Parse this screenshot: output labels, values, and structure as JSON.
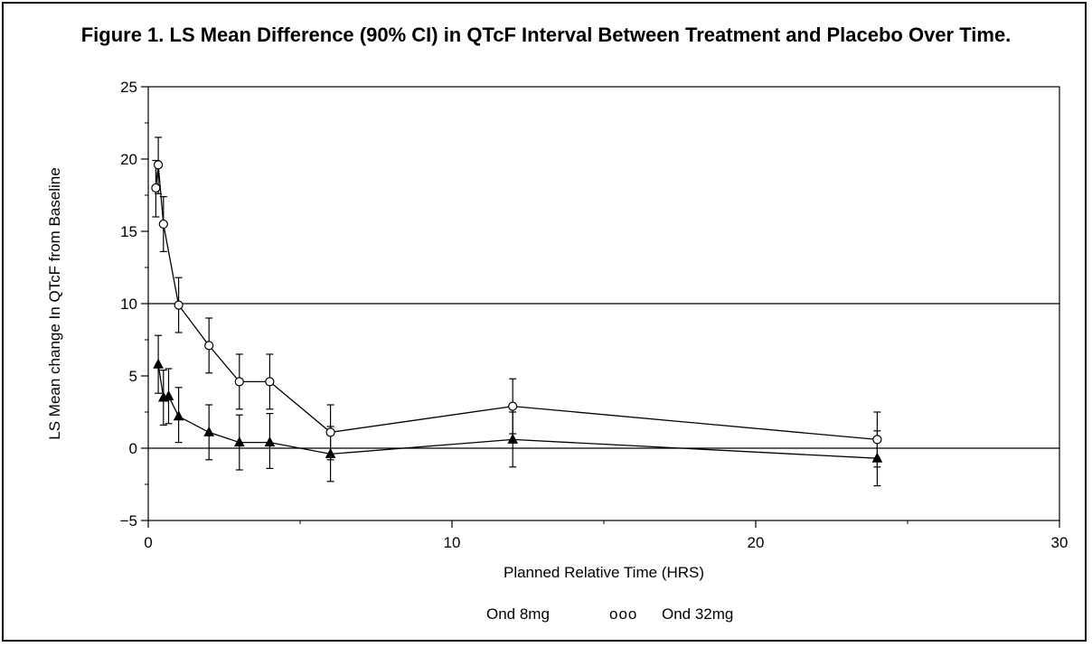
{
  "chart_data": {
    "type": "line",
    "title": "Figure 1. LS Mean Difference (90% CI) in QTcF Interval Between Treatment and Placebo Over Time.",
    "xlabel": "Planned Relative Time (HRS)",
    "ylabel": "LS Mean change In QTcF from  Baseline",
    "xlim": [
      0,
      30
    ],
    "ylim": [
      -5,
      25
    ],
    "xticks": [
      0,
      10,
      20,
      30
    ],
    "yticks": [
      -5,
      0,
      5,
      10,
      15,
      20,
      25
    ],
    "reference_lines_y": [
      0,
      10
    ],
    "legend_placement": "bottom-center",
    "series": [
      {
        "name": "Ond 8mg",
        "marker": "triangle",
        "x": [
          0.33,
          0.5,
          0.67,
          1,
          2,
          3,
          4,
          6,
          12,
          24
        ],
        "y": [
          5.8,
          3.5,
          3.6,
          2.2,
          1.1,
          0.4,
          0.4,
          -0.4,
          0.6,
          -0.7
        ],
        "lower": [
          3.8,
          1.6,
          1.7,
          0.4,
          -0.8,
          -1.5,
          -1.4,
          -2.3,
          -1.3,
          -2.6
        ],
        "upper": [
          7.8,
          5.4,
          5.5,
          4.2,
          3.0,
          2.3,
          2.4,
          1.5,
          2.5,
          1.2
        ]
      },
      {
        "name": "Ond 32mg",
        "marker": "circle",
        "x": [
          0.25,
          0.33,
          0.5,
          1,
          2,
          3,
          4,
          6,
          12,
          24
        ],
        "y": [
          18.0,
          19.6,
          15.5,
          9.9,
          7.1,
          4.6,
          4.6,
          1.1,
          2.9,
          0.6
        ],
        "lower": [
          16.0,
          17.6,
          13.6,
          8.0,
          5.2,
          2.7,
          2.7,
          -0.8,
          1.0,
          -1.3
        ],
        "upper": [
          19.9,
          21.5,
          17.4,
          11.8,
          9.0,
          6.5,
          6.5,
          3.0,
          4.8,
          2.5
        ]
      }
    ],
    "legend": {
      "entries": [
        {
          "label": "Ond 8mg",
          "symbol": ""
        },
        {
          "label": "Ond 32mg",
          "symbol": "ooo"
        }
      ]
    }
  }
}
